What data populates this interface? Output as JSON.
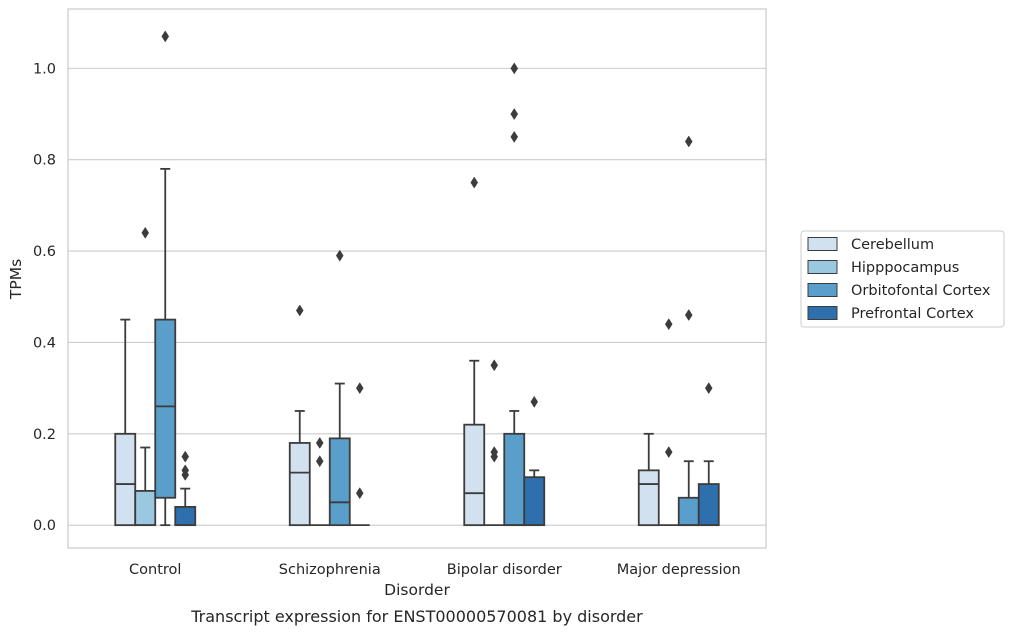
{
  "caption": "Transcript expression for ENST00000570081 by disorder",
  "chart_data": {
    "type": "box",
    "xlabel": "Disorder",
    "ylabel": "TPMs",
    "ylim": [
      -0.05,
      1.13
    ],
    "yticks": [
      "0.0",
      "0.2",
      "0.4",
      "0.6",
      "0.8",
      "1.0"
    ],
    "grid": true,
    "legend_position": "right",
    "categories": [
      "Control",
      "Schizophrenia",
      "Bipolar disorder",
      "Major depression"
    ],
    "series": [
      {
        "name": "Cerebellum",
        "color": "#d2e1f0",
        "boxes": [
          {
            "q1": 0.0,
            "median": 0.09,
            "q3": 0.2,
            "whisker_low": 0.0,
            "whisker_high": 0.45,
            "outliers": []
          },
          {
            "q1": 0.0,
            "median": 0.115,
            "q3": 0.18,
            "whisker_low": 0.0,
            "whisker_high": 0.25,
            "outliers": [
              0.47
            ]
          },
          {
            "q1": 0.0,
            "median": 0.07,
            "q3": 0.22,
            "whisker_low": 0.0,
            "whisker_high": 0.36,
            "outliers": [
              0.75
            ]
          },
          {
            "q1": 0.0,
            "median": 0.09,
            "q3": 0.12,
            "whisker_low": 0.0,
            "whisker_high": 0.2,
            "outliers": []
          }
        ]
      },
      {
        "name": "Hipppocampus",
        "color": "#9ac8e0",
        "boxes": [
          {
            "q1": 0.0,
            "median": 0.0,
            "q3": 0.075,
            "whisker_low": 0.0,
            "whisker_high": 0.17,
            "outliers": [
              0.64
            ]
          },
          {
            "q1": 0.0,
            "median": 0.0,
            "q3": 0.0,
            "whisker_low": 0.0,
            "whisker_high": 0.0,
            "outliers": [
              0.14,
              0.18
            ]
          },
          {
            "q1": 0.0,
            "median": 0.0,
            "q3": 0.0,
            "whisker_low": 0.0,
            "whisker_high": 0.0,
            "outliers": [
              0.15,
              0.16,
              0.35
            ]
          },
          {
            "q1": 0.0,
            "median": 0.0,
            "q3": 0.0,
            "whisker_low": 0.0,
            "whisker_high": 0.0,
            "outliers": [
              0.16,
              0.44
            ]
          }
        ]
      },
      {
        "name": "Orbitofontal Cortex",
        "color": "#5a9ecc",
        "boxes": [
          {
            "q1": 0.06,
            "median": 0.26,
            "q3": 0.45,
            "whisker_low": 0.0,
            "whisker_high": 0.78,
            "outliers": [
              1.07
            ]
          },
          {
            "q1": 0.0,
            "median": 0.05,
            "q3": 0.19,
            "whisker_low": 0.0,
            "whisker_high": 0.31,
            "outliers": [
              0.59
            ]
          },
          {
            "q1": 0.0,
            "median": 0.0,
            "q3": 0.2,
            "whisker_low": 0.0,
            "whisker_high": 0.25,
            "outliers": [
              0.85,
              0.9,
              1.0
            ]
          },
          {
            "q1": 0.0,
            "median": 0.0,
            "q3": 0.06,
            "whisker_low": 0.0,
            "whisker_high": 0.14,
            "outliers": [
              0.46,
              0.84
            ]
          }
        ]
      },
      {
        "name": "Prefrontal Cortex",
        "color": "#2e6fae",
        "boxes": [
          {
            "q1": 0.0,
            "median": 0.0,
            "q3": 0.04,
            "whisker_low": 0.0,
            "whisker_high": 0.08,
            "outliers": [
              0.11,
              0.12,
              0.15
            ]
          },
          {
            "q1": 0.0,
            "median": 0.0,
            "q3": 0.0,
            "whisker_low": 0.0,
            "whisker_high": 0.0,
            "outliers": [
              0.07,
              0.3
            ]
          },
          {
            "q1": 0.0,
            "median": 0.0,
            "q3": 0.105,
            "whisker_low": 0.0,
            "whisker_high": 0.12,
            "outliers": [
              0.27
            ]
          },
          {
            "q1": 0.0,
            "median": 0.0,
            "q3": 0.09,
            "whisker_low": 0.0,
            "whisker_high": 0.14,
            "outliers": [
              0.3
            ]
          }
        ]
      }
    ]
  }
}
